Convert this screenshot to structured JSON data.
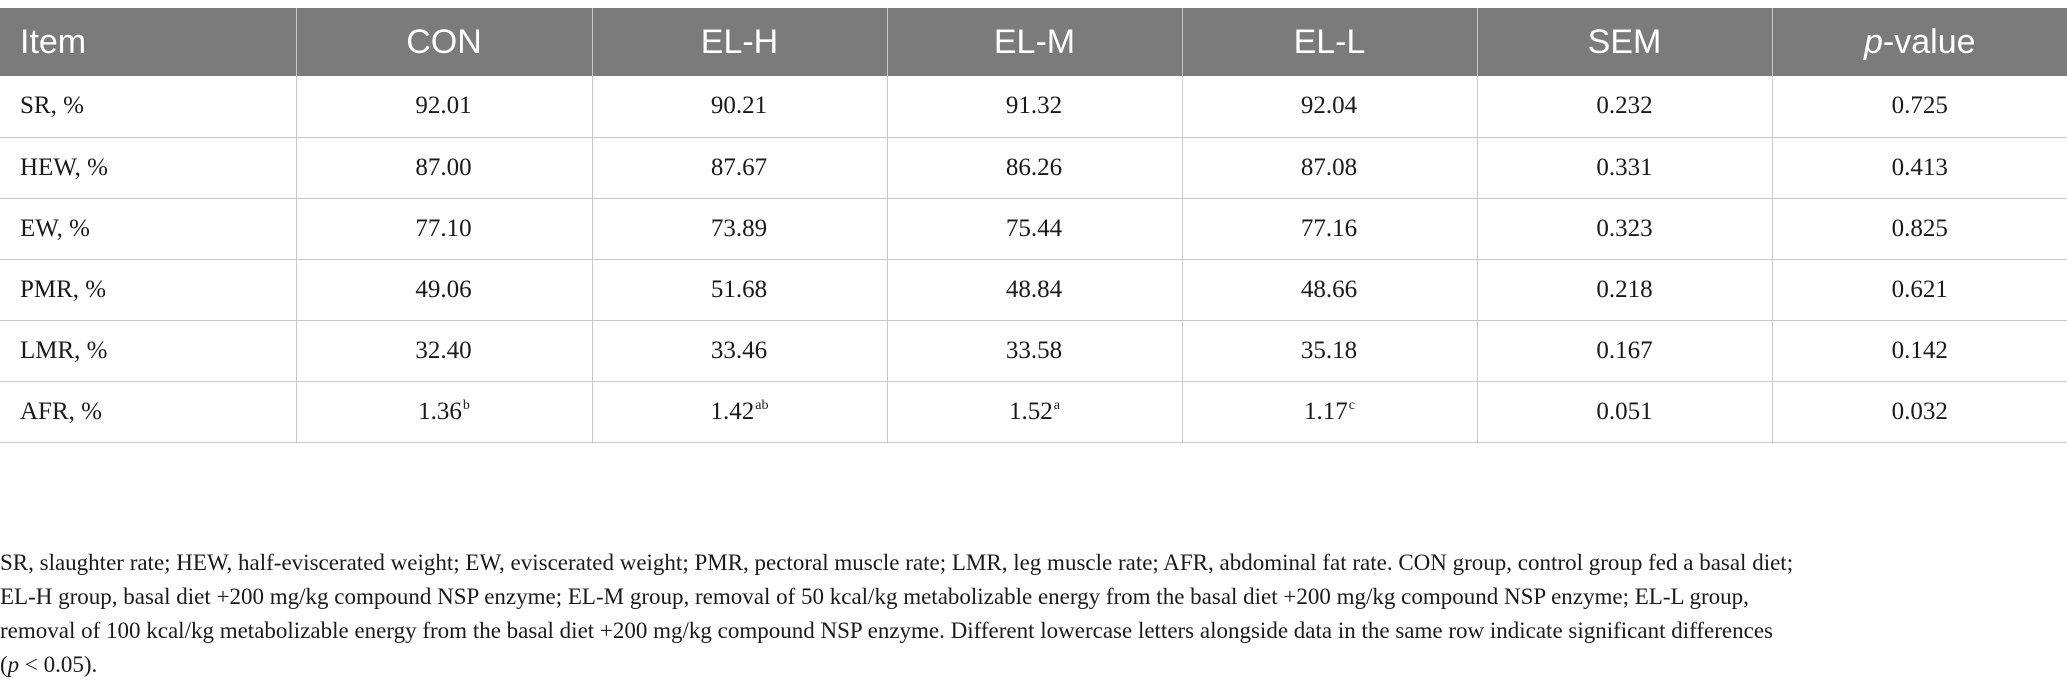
{
  "table": {
    "header": {
      "item": "Item",
      "con": "CON",
      "elh": "EL-H",
      "elm": "EL-M",
      "ell": "EL-L",
      "sem": "SEM",
      "p_prefix": "p",
      "p_suffix": "-value"
    },
    "rows": [
      {
        "item": "SR, %",
        "con": "92.01",
        "con_sup": "",
        "elh": "90.21",
        "elh_sup": "",
        "elm": "91.32",
        "elm_sup": "",
        "ell": "92.04",
        "ell_sup": "",
        "sem": "0.232",
        "p": "0.725"
      },
      {
        "item": "HEW, %",
        "con": "87.00",
        "con_sup": "",
        "elh": "87.67",
        "elh_sup": "",
        "elm": "86.26",
        "elm_sup": "",
        "ell": "87.08",
        "ell_sup": "",
        "sem": "0.331",
        "p": "0.413"
      },
      {
        "item": "EW, %",
        "con": "77.10",
        "con_sup": "",
        "elh": "73.89",
        "elh_sup": "",
        "elm": "75.44",
        "elm_sup": "",
        "ell": "77.16",
        "ell_sup": "",
        "sem": "0.323",
        "p": "0.825"
      },
      {
        "item": "PMR, %",
        "con": "49.06",
        "con_sup": "",
        "elh": "51.68",
        "elh_sup": "",
        "elm": "48.84",
        "elm_sup": "",
        "ell": "48.66",
        "ell_sup": "",
        "sem": "0.218",
        "p": "0.621"
      },
      {
        "item": "LMR, %",
        "con": "32.40",
        "con_sup": "",
        "elh": "33.46",
        "elh_sup": "",
        "elm": "33.58",
        "elm_sup": "",
        "ell": "35.18",
        "ell_sup": "",
        "sem": "0.167",
        "p": "0.142"
      },
      {
        "item": "AFR, %",
        "con": "1.36",
        "con_sup": "b",
        "elh": "1.42",
        "elh_sup": "ab",
        "elm": "1.52",
        "elm_sup": "a",
        "ell": "1.17",
        "ell_sup": "c",
        "sem": "0.051",
        "p": "0.032"
      }
    ]
  },
  "footnote": {
    "line1": "SR, slaughter rate; HEW, half-eviscerated weight; EW, eviscerated weight; PMR, pectoral muscle rate; LMR, leg muscle rate; AFR, abdominal fat rate. CON group, control group fed a basal diet;",
    "line2": "EL-H group, basal diet +200 mg/kg compound NSP enzyme; EL-M group, removal of 50 kcal/kg metabolizable energy from the basal diet +200 mg/kg compound NSP enzyme; EL-L group,",
    "line3": "removal of 100 kcal/kg metabolizable energy from the basal diet +200 mg/kg compound NSP enzyme. Different lowercase letters alongside data in the same row indicate significant differences",
    "line4_open": "(",
    "line4_p": "p",
    "line4_rest": " < 0.05)."
  },
  "colors": {
    "header_bg": "#7b7b7b",
    "header_text": "#ffffff",
    "grid": "#c9c9c9"
  }
}
